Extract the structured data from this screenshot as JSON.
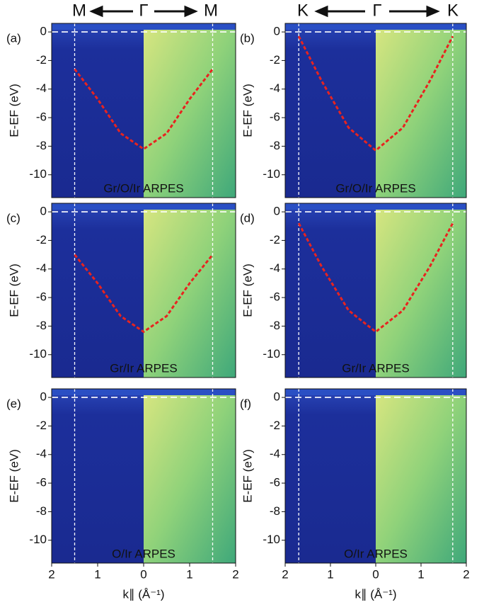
{
  "header": {
    "left": [
      "M",
      "Γ",
      "M"
    ],
    "right": [
      "K",
      "Γ",
      "K"
    ]
  },
  "chart_data": [
    {
      "type": "arpes",
      "label": "(a)",
      "annotation": "Gr/O/Ir ARPES",
      "ylabel": "E-EF (eV)",
      "xlim": [
        -2,
        2
      ],
      "ylim": [
        -11.6,
        0.6
      ],
      "yticks": [
        0,
        -2,
        -4,
        -6,
        -8,
        -10
      ],
      "vlines": [
        -1.5,
        1.5
      ],
      "hlines": [
        0
      ],
      "series": [
        {
          "color": "#e8231f",
          "x": [
            -1.5,
            -1,
            -0.5,
            0,
            0.5,
            1,
            1.5
          ],
          "values": [
            -2.6,
            -4.7,
            -7.1,
            -8.2,
            -7.1,
            -4.7,
            -2.6
          ]
        }
      ]
    },
    {
      "type": "arpes",
      "label": "(b)",
      "annotation": "Gr/O/Ir ARPES",
      "ylabel": "E-EF (eV)",
      "xlim": [
        -2,
        2
      ],
      "ylim": [
        -11.6,
        0.6
      ],
      "yticks": [
        0,
        -2,
        -4,
        -6,
        -8,
        -10
      ],
      "vlines": [
        -1.7,
        1.7
      ],
      "hlines": [
        0
      ],
      "series": [
        {
          "color": "#e8231f",
          "x": [
            -1.7,
            -1.2,
            -0.6,
            0,
            0.6,
            1.2,
            1.7
          ],
          "values": [
            -0.3,
            -3.4,
            -6.7,
            -8.3,
            -6.7,
            -3.4,
            -0.3
          ]
        }
      ]
    },
    {
      "type": "arpes",
      "label": "(c)",
      "annotation": "Gr/Ir ARPES",
      "ylabel": "E-EF (eV)",
      "xlim": [
        -2,
        2
      ],
      "ylim": [
        -11.6,
        0.6
      ],
      "yticks": [
        0,
        -2,
        -4,
        -6,
        -8,
        -10
      ],
      "vlines": [
        -1.5,
        1.5
      ],
      "hlines": [
        0
      ],
      "series": [
        {
          "color": "#e8231f",
          "x": [
            -1.5,
            -1,
            -0.5,
            0,
            0.5,
            1,
            1.5
          ],
          "values": [
            -3.0,
            -5.0,
            -7.3,
            -8.4,
            -7.3,
            -5.0,
            -3.0
          ]
        }
      ]
    },
    {
      "type": "arpes",
      "label": "(d)",
      "annotation": "Gr/Ir ARPES",
      "ylabel": "E-EF (eV)",
      "xlim": [
        -2,
        2
      ],
      "ylim": [
        -11.6,
        0.6
      ],
      "yticks": [
        0,
        -2,
        -4,
        -6,
        -8,
        -10
      ],
      "vlines": [
        -1.7,
        1.7
      ],
      "hlines": [
        0
      ],
      "series": [
        {
          "color": "#e8231f",
          "x": [
            -1.7,
            -1.2,
            -0.6,
            0,
            0.6,
            1.2,
            1.7
          ],
          "values": [
            -0.8,
            -3.8,
            -6.9,
            -8.4,
            -6.9,
            -3.8,
            -0.8
          ]
        }
      ]
    },
    {
      "type": "arpes",
      "label": "(e)",
      "annotation": "O/Ir ARPES",
      "ylabel": "E-EF (eV)",
      "xlabel": "k∥ (Å⁻¹)",
      "xlim": [
        -2,
        2
      ],
      "ylim": [
        -11.6,
        0.6
      ],
      "yticks": [
        0,
        -2,
        -4,
        -6,
        -8,
        -10
      ],
      "vlines": [
        -1.5,
        1.5
      ],
      "hlines": [
        0
      ],
      "xticks": [
        {
          "value": -2,
          "label": "2"
        },
        {
          "value": -1,
          "label": "1"
        },
        0,
        1,
        2
      ]
    },
    {
      "type": "arpes",
      "label": "(f)",
      "annotation": "O/Ir ARPES",
      "ylabel": "E-EF (eV)",
      "xlabel": "k∥ (Å⁻¹)",
      "xlim": [
        -2,
        2
      ],
      "ylim": [
        -11.6,
        0.6
      ],
      "yticks": [
        0,
        -2,
        -4,
        -6,
        -8,
        -10
      ],
      "vlines": [
        -1.7,
        1.7
      ],
      "hlines": [
        0
      ],
      "xticks": [
        {
          "value": -2,
          "label": "2"
        },
        {
          "value": -1,
          "label": "1"
        },
        0,
        1,
        2
      ]
    }
  ]
}
